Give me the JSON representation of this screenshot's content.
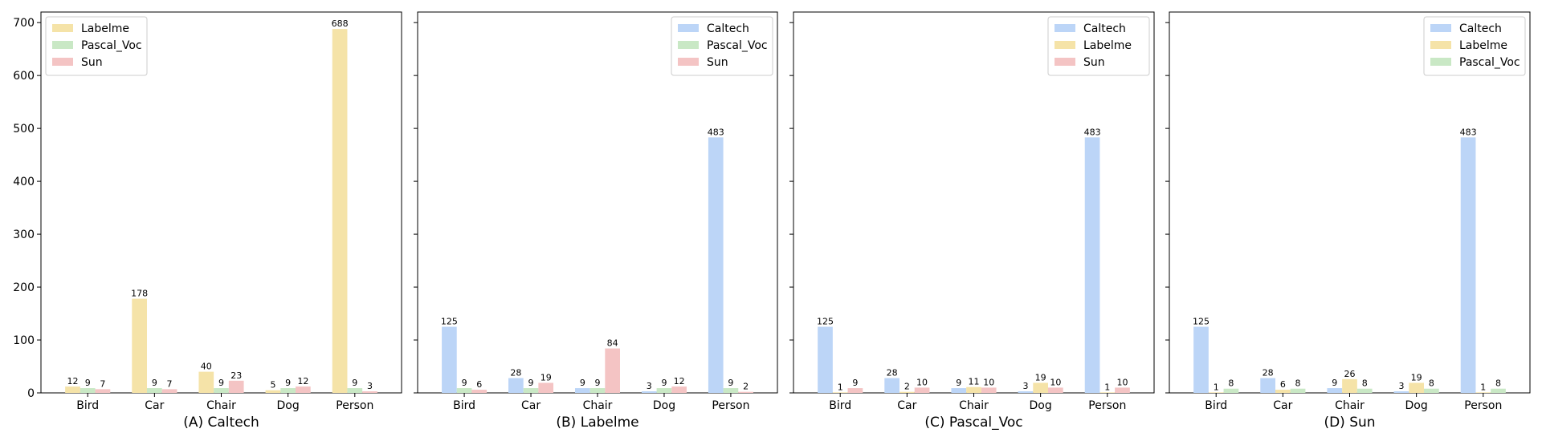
{
  "palette": {
    "Caltech": "#bcd5f7",
    "Labelme": "#f5e3a8",
    "Pascal_Voc": "#c9e8c5",
    "Sun": "#f4c4c4"
  },
  "chart_data": [
    {
      "type": "bar",
      "xlabel": "(A) Caltech",
      "categories": [
        "Bird",
        "Car",
        "Chair",
        "Dog",
        "Person"
      ],
      "ylim": [
        0,
        720
      ],
      "yticks": [
        0,
        100,
        200,
        300,
        400,
        500,
        600,
        700
      ],
      "legend": "top-left",
      "series": [
        {
          "name": "Labelme",
          "values": [
            12,
            178,
            40,
            5,
            688
          ]
        },
        {
          "name": "Pascal_Voc",
          "values": [
            9,
            9,
            9,
            9,
            9
          ]
        },
        {
          "name": "Sun",
          "values": [
            7,
            7,
            23,
            12,
            3
          ]
        }
      ]
    },
    {
      "type": "bar",
      "xlabel": "(B) Labelme",
      "categories": [
        "Bird",
        "Car",
        "Chair",
        "Dog",
        "Person"
      ],
      "ylim": [
        0,
        720
      ],
      "yticks": [
        0,
        100,
        200,
        300,
        400,
        500,
        600,
        700
      ],
      "legend": "top-right",
      "series": [
        {
          "name": "Caltech",
          "values": [
            125,
            28,
            9,
            3,
            483
          ]
        },
        {
          "name": "Pascal_Voc",
          "values": [
            9,
            9,
            9,
            9,
            9
          ]
        },
        {
          "name": "Sun",
          "values": [
            6,
            19,
            84,
            12,
            2
          ]
        }
      ]
    },
    {
      "type": "bar",
      "xlabel": "(C) Pascal_Voc",
      "categories": [
        "Bird",
        "Car",
        "Chair",
        "Dog",
        "Person"
      ],
      "ylim": [
        0,
        720
      ],
      "yticks": [
        0,
        100,
        200,
        300,
        400,
        500,
        600,
        700
      ],
      "legend": "top-right",
      "series": [
        {
          "name": "Caltech",
          "values": [
            125,
            28,
            9,
            3,
            483
          ]
        },
        {
          "name": "Labelme",
          "values": [
            1,
            2,
            11,
            19,
            1
          ]
        },
        {
          "name": "Sun",
          "values": [
            9,
            10,
            10,
            10,
            10
          ]
        }
      ]
    },
    {
      "type": "bar",
      "xlabel": "(D) Sun",
      "categories": [
        "Bird",
        "Car",
        "Chair",
        "Dog",
        "Person"
      ],
      "ylim": [
        0,
        720
      ],
      "yticks": [
        0,
        100,
        200,
        300,
        400,
        500,
        600,
        700
      ],
      "legend": "top-right",
      "series": [
        {
          "name": "Caltech",
          "values": [
            125,
            28,
            9,
            3,
            483
          ]
        },
        {
          "name": "Labelme",
          "values": [
            1,
            6,
            26,
            19,
            1
          ]
        },
        {
          "name": "Pascal_Voc",
          "values": [
            8,
            8,
            8,
            8,
            8
          ]
        }
      ]
    }
  ]
}
